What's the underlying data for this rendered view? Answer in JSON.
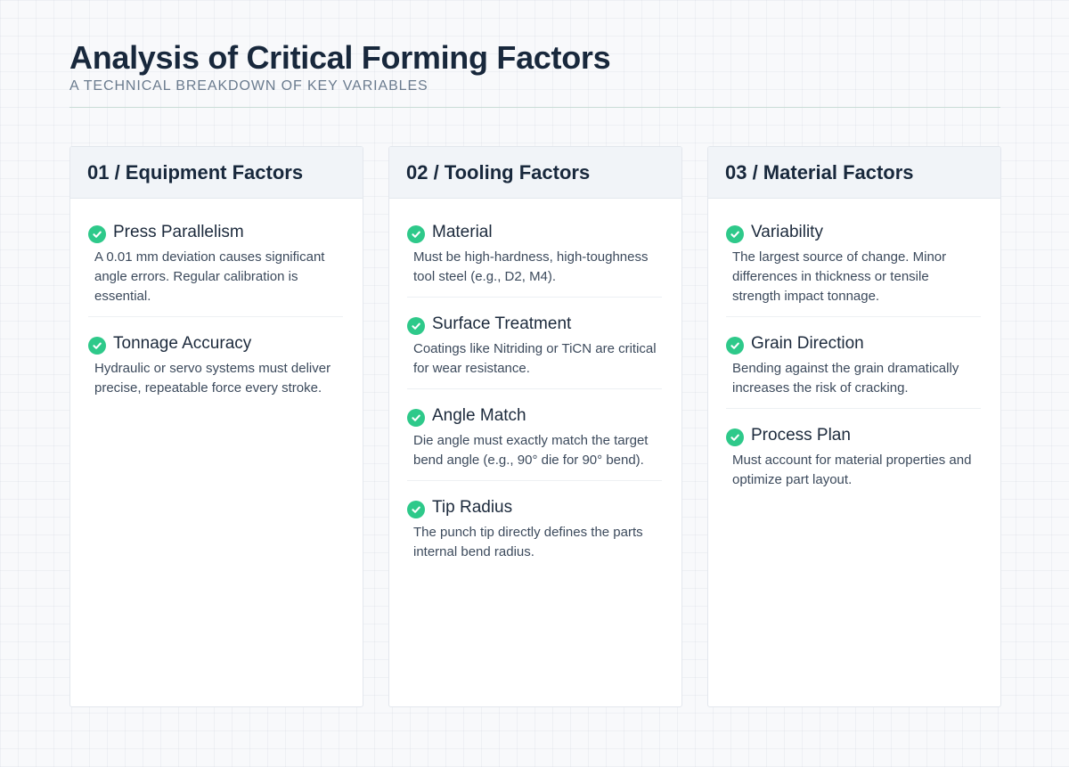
{
  "header": {
    "title": "Analysis of Critical Forming Factors",
    "subtitle": "A Technical Breakdown of Key Variables"
  },
  "columns": [
    {
      "title": "01 / Equipment Factors",
      "items": [
        {
          "icon": "check-circle-icon",
          "title": "Press Parallelism",
          "desc": "A 0.01 mm deviation causes significant angle errors. Regular calibration is essential."
        },
        {
          "icon": "check-circle-icon",
          "title": "Tonnage Accuracy",
          "desc": "Hydraulic or servo systems must deliver precise, repeatable force every stroke."
        }
      ]
    },
    {
      "title": "02 / Tooling Factors",
      "items": [
        {
          "icon": "check-circle-icon",
          "title": "Material",
          "desc": "Must be high-hardness, high-toughness tool steel (e.g., D2, M4)."
        },
        {
          "icon": "check-circle-icon",
          "title": "Surface Treatment",
          "desc": "Coatings like Nitriding or TiCN are critical for wear resistance."
        },
        {
          "icon": "check-circle-icon",
          "title": "Angle Match",
          "desc": "Die angle must exactly match the target bend angle (e.g., 90° die for 90° bend)."
        },
        {
          "icon": "check-circle-icon",
          "title": "Tip Radius",
          "desc": "The punch tip directly defines the parts internal bend radius."
        }
      ]
    },
    {
      "title": "03 / Material Factors",
      "items": [
        {
          "icon": "check-circle-icon",
          "title": "Variability",
          "desc": "The largest source of change. Minor differences in thickness or tensile strength impact tonnage."
        },
        {
          "icon": "check-circle-icon",
          "title": "Grain Direction",
          "desc": "Bending against the grain dramatically increases the risk of cracking."
        },
        {
          "icon": "check-circle-icon",
          "title": "Process Plan",
          "desc": "Must account for material properties and optimize part layout."
        }
      ]
    }
  ],
  "colors": {
    "accent": "#2ec98a",
    "title": "#18283c",
    "subtitle": "#6a7b8e",
    "card_header": "#f1f4f8"
  }
}
